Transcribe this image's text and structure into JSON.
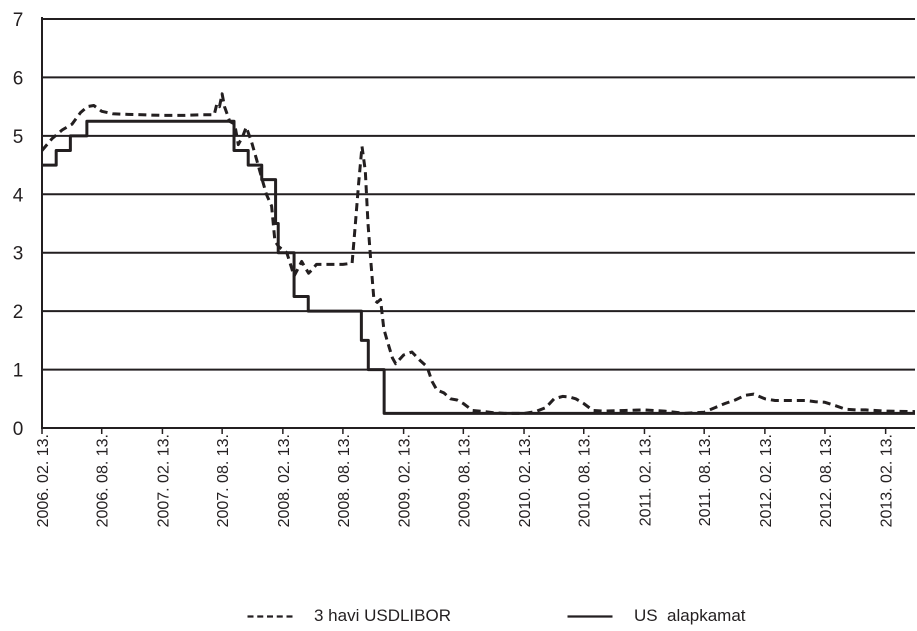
{
  "chart_data": {
    "type": "line",
    "title": "",
    "xlabel": "",
    "ylabel": "",
    "ylim": [
      0,
      7
    ],
    "y_ticks": [
      "0",
      "1",
      "2",
      "3",
      "4",
      "5",
      "6",
      "7"
    ],
    "xlim": [
      "2006-02-13",
      "2013-05-13"
    ],
    "x_ticks": [
      "2006. 02. 13.",
      "2006. 08. 13.",
      "2007. 02. 13.",
      "2007. 08. 13.",
      "2008. 02. 13.",
      "2008. 08. 13.",
      "2009. 02. 13.",
      "2009. 08. 13.",
      "2010. 02. 13.",
      "2010. 08. 13.",
      "2011. 02. 13.",
      "2011. 08. 13.",
      "2012. 02. 13.",
      "2012. 08. 13.",
      "2013. 02. 13."
    ],
    "grid": "horizontal",
    "legend_position": "bottom",
    "series": [
      {
        "name": "3 havi USDLIBOR",
        "style": "dashed",
        "color": "#231f20",
        "points": [
          [
            "2006-02-13",
            4.75
          ],
          [
            "2006-03-15",
            4.95
          ],
          [
            "2006-04-15",
            5.1
          ],
          [
            "2006-05-15",
            5.2
          ],
          [
            "2006-06-10",
            5.4
          ],
          [
            "2006-07-01",
            5.5
          ],
          [
            "2006-07-20",
            5.52
          ],
          [
            "2006-08-13",
            5.42
          ],
          [
            "2006-09-15",
            5.38
          ],
          [
            "2006-10-15",
            5.37
          ],
          [
            "2006-12-15",
            5.36
          ],
          [
            "2007-02-13",
            5.35
          ],
          [
            "2007-04-15",
            5.35
          ],
          [
            "2007-06-15",
            5.36
          ],
          [
            "2007-07-20",
            5.36
          ],
          [
            "2007-07-28",
            5.55
          ],
          [
            "2007-08-05",
            5.5
          ],
          [
            "2007-08-13",
            5.72
          ],
          [
            "2007-08-20",
            5.5
          ],
          [
            "2007-09-05",
            5.25
          ],
          [
            "2007-09-20",
            5.2
          ],
          [
            "2007-10-01",
            4.85
          ],
          [
            "2007-10-15",
            5.0
          ],
          [
            "2007-10-25",
            5.15
          ],
          [
            "2007-11-10",
            4.9
          ],
          [
            "2007-11-25",
            4.6
          ],
          [
            "2007-12-10",
            4.3
          ],
          [
            "2007-12-25",
            4.0
          ],
          [
            "2008-01-10",
            3.8
          ],
          [
            "2008-01-20",
            3.2
          ],
          [
            "2008-02-01",
            3.1
          ],
          [
            "2008-02-13",
            3.05
          ],
          [
            "2008-02-25",
            3.0
          ],
          [
            "2008-03-10",
            2.75
          ],
          [
            "2008-03-18",
            2.6
          ],
          [
            "2008-04-01",
            2.75
          ],
          [
            "2008-04-10",
            2.85
          ],
          [
            "2008-04-20",
            2.75
          ],
          [
            "2008-05-01",
            2.65
          ],
          [
            "2008-05-10",
            2.7
          ],
          [
            "2008-05-25",
            2.8
          ],
          [
            "2008-06-15",
            2.8
          ],
          [
            "2008-07-15",
            2.8
          ],
          [
            "2008-08-13",
            2.8
          ],
          [
            "2008-09-10",
            2.82
          ],
          [
            "2008-09-20",
            3.5
          ],
          [
            "2008-09-30",
            4.2
          ],
          [
            "2008-10-10",
            4.82
          ],
          [
            "2008-10-20",
            4.4
          ],
          [
            "2008-10-28",
            3.5
          ],
          [
            "2008-11-05",
            2.9
          ],
          [
            "2008-11-15",
            2.2
          ],
          [
            "2008-11-25",
            2.15
          ],
          [
            "2008-12-05",
            2.2
          ],
          [
            "2008-12-15",
            1.7
          ],
          [
            "2008-12-25",
            1.5
          ],
          [
            "2009-01-10",
            1.2
          ],
          [
            "2009-01-20",
            1.1
          ],
          [
            "2009-02-13",
            1.25
          ],
          [
            "2009-03-10",
            1.3
          ],
          [
            "2009-04-05",
            1.15
          ],
          [
            "2009-04-25",
            1.05
          ],
          [
            "2009-05-10",
            0.8
          ],
          [
            "2009-05-25",
            0.65
          ],
          [
            "2009-06-15",
            0.6
          ],
          [
            "2009-07-05",
            0.5
          ],
          [
            "2009-07-25",
            0.48
          ],
          [
            "2009-08-13",
            0.42
          ],
          [
            "2009-09-10",
            0.3
          ],
          [
            "2009-10-15",
            0.28
          ],
          [
            "2009-11-15",
            0.26
          ],
          [
            "2009-12-15",
            0.25
          ],
          [
            "2010-02-13",
            0.25
          ],
          [
            "2010-03-20",
            0.28
          ],
          [
            "2010-04-20",
            0.35
          ],
          [
            "2010-05-15",
            0.5
          ],
          [
            "2010-06-10",
            0.54
          ],
          [
            "2010-07-01",
            0.53
          ],
          [
            "2010-07-20",
            0.5
          ],
          [
            "2010-08-13",
            0.42
          ],
          [
            "2010-09-10",
            0.3
          ],
          [
            "2010-10-15",
            0.29
          ],
          [
            "2010-12-15",
            0.3
          ],
          [
            "2011-02-13",
            0.31
          ],
          [
            "2011-04-15",
            0.29
          ],
          [
            "2011-06-15",
            0.25
          ],
          [
            "2011-08-13",
            0.27
          ],
          [
            "2011-09-15",
            0.35
          ],
          [
            "2011-10-15",
            0.42
          ],
          [
            "2011-11-15",
            0.48
          ],
          [
            "2011-12-15",
            0.56
          ],
          [
            "2012-01-10",
            0.58
          ],
          [
            "2012-02-13",
            0.5
          ],
          [
            "2012-03-15",
            0.47
          ],
          [
            "2012-05-15",
            0.47
          ],
          [
            "2012-06-15",
            0.47
          ],
          [
            "2012-07-15",
            0.45
          ],
          [
            "2012-08-13",
            0.44
          ],
          [
            "2012-09-15",
            0.38
          ],
          [
            "2012-10-15",
            0.32
          ],
          [
            "2012-11-15",
            0.31
          ],
          [
            "2012-12-15",
            0.31
          ],
          [
            "2013-02-13",
            0.29
          ],
          [
            "2013-05-13",
            0.28
          ]
        ]
      },
      {
        "name": "US  alapkamat",
        "style": "solid",
        "color": "#231f20",
        "points": [
          [
            "2006-02-13",
            4.5
          ],
          [
            "2006-03-28",
            4.75
          ],
          [
            "2006-05-10",
            5.0
          ],
          [
            "2006-06-29",
            5.25
          ],
          [
            "2007-09-18",
            4.75
          ],
          [
            "2007-10-31",
            4.5
          ],
          [
            "2007-12-11",
            4.25
          ],
          [
            "2008-01-22",
            3.5
          ],
          [
            "2008-01-30",
            3.0
          ],
          [
            "2008-03-18",
            2.25
          ],
          [
            "2008-04-30",
            2.0
          ],
          [
            "2008-10-08",
            1.5
          ],
          [
            "2008-10-29",
            1.0
          ],
          [
            "2008-12-16",
            0.25
          ],
          [
            "2013-05-13",
            0.25
          ]
        ]
      }
    ]
  },
  "legend": {
    "items": [
      {
        "label": "3 havi USDLIBOR",
        "style": "dashed"
      },
      {
        "label": "US  alapkamat",
        "style": "solid"
      }
    ]
  },
  "colors": {
    "ink": "#231f20",
    "background": "#ffffff"
  }
}
